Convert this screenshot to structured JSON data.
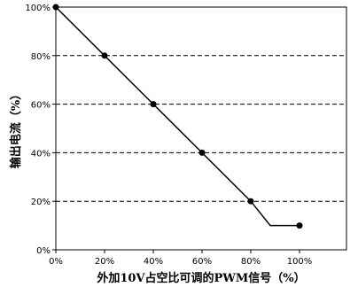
{
  "chart_data": {
    "type": "line",
    "title": "",
    "xlabel": "外加10V占空比可调的PWM信号（%）",
    "ylabel": "输出电流（%）",
    "xlim": [
      0,
      100
    ],
    "ylim": [
      0,
      100
    ],
    "x_ticks": [
      "0%",
      "20%",
      "40%",
      "60%",
      "80%",
      "100%"
    ],
    "y_ticks": [
      "0%",
      "20%",
      "40%",
      "60%",
      "80%",
      "100%"
    ],
    "grid": "horizontal dashed",
    "series": [
      {
        "points": [
          {
            "x": 0,
            "y": 100
          },
          {
            "x": 20,
            "y": 80
          },
          {
            "x": 40,
            "y": 60
          },
          {
            "x": 60,
            "y": 40
          },
          {
            "x": 80,
            "y": 20
          },
          {
            "x": 88,
            "y": 10
          },
          {
            "x": 100,
            "y": 10
          }
        ],
        "markers_at_x": [
          0,
          20,
          40,
          60,
          80,
          100
        ]
      }
    ]
  }
}
